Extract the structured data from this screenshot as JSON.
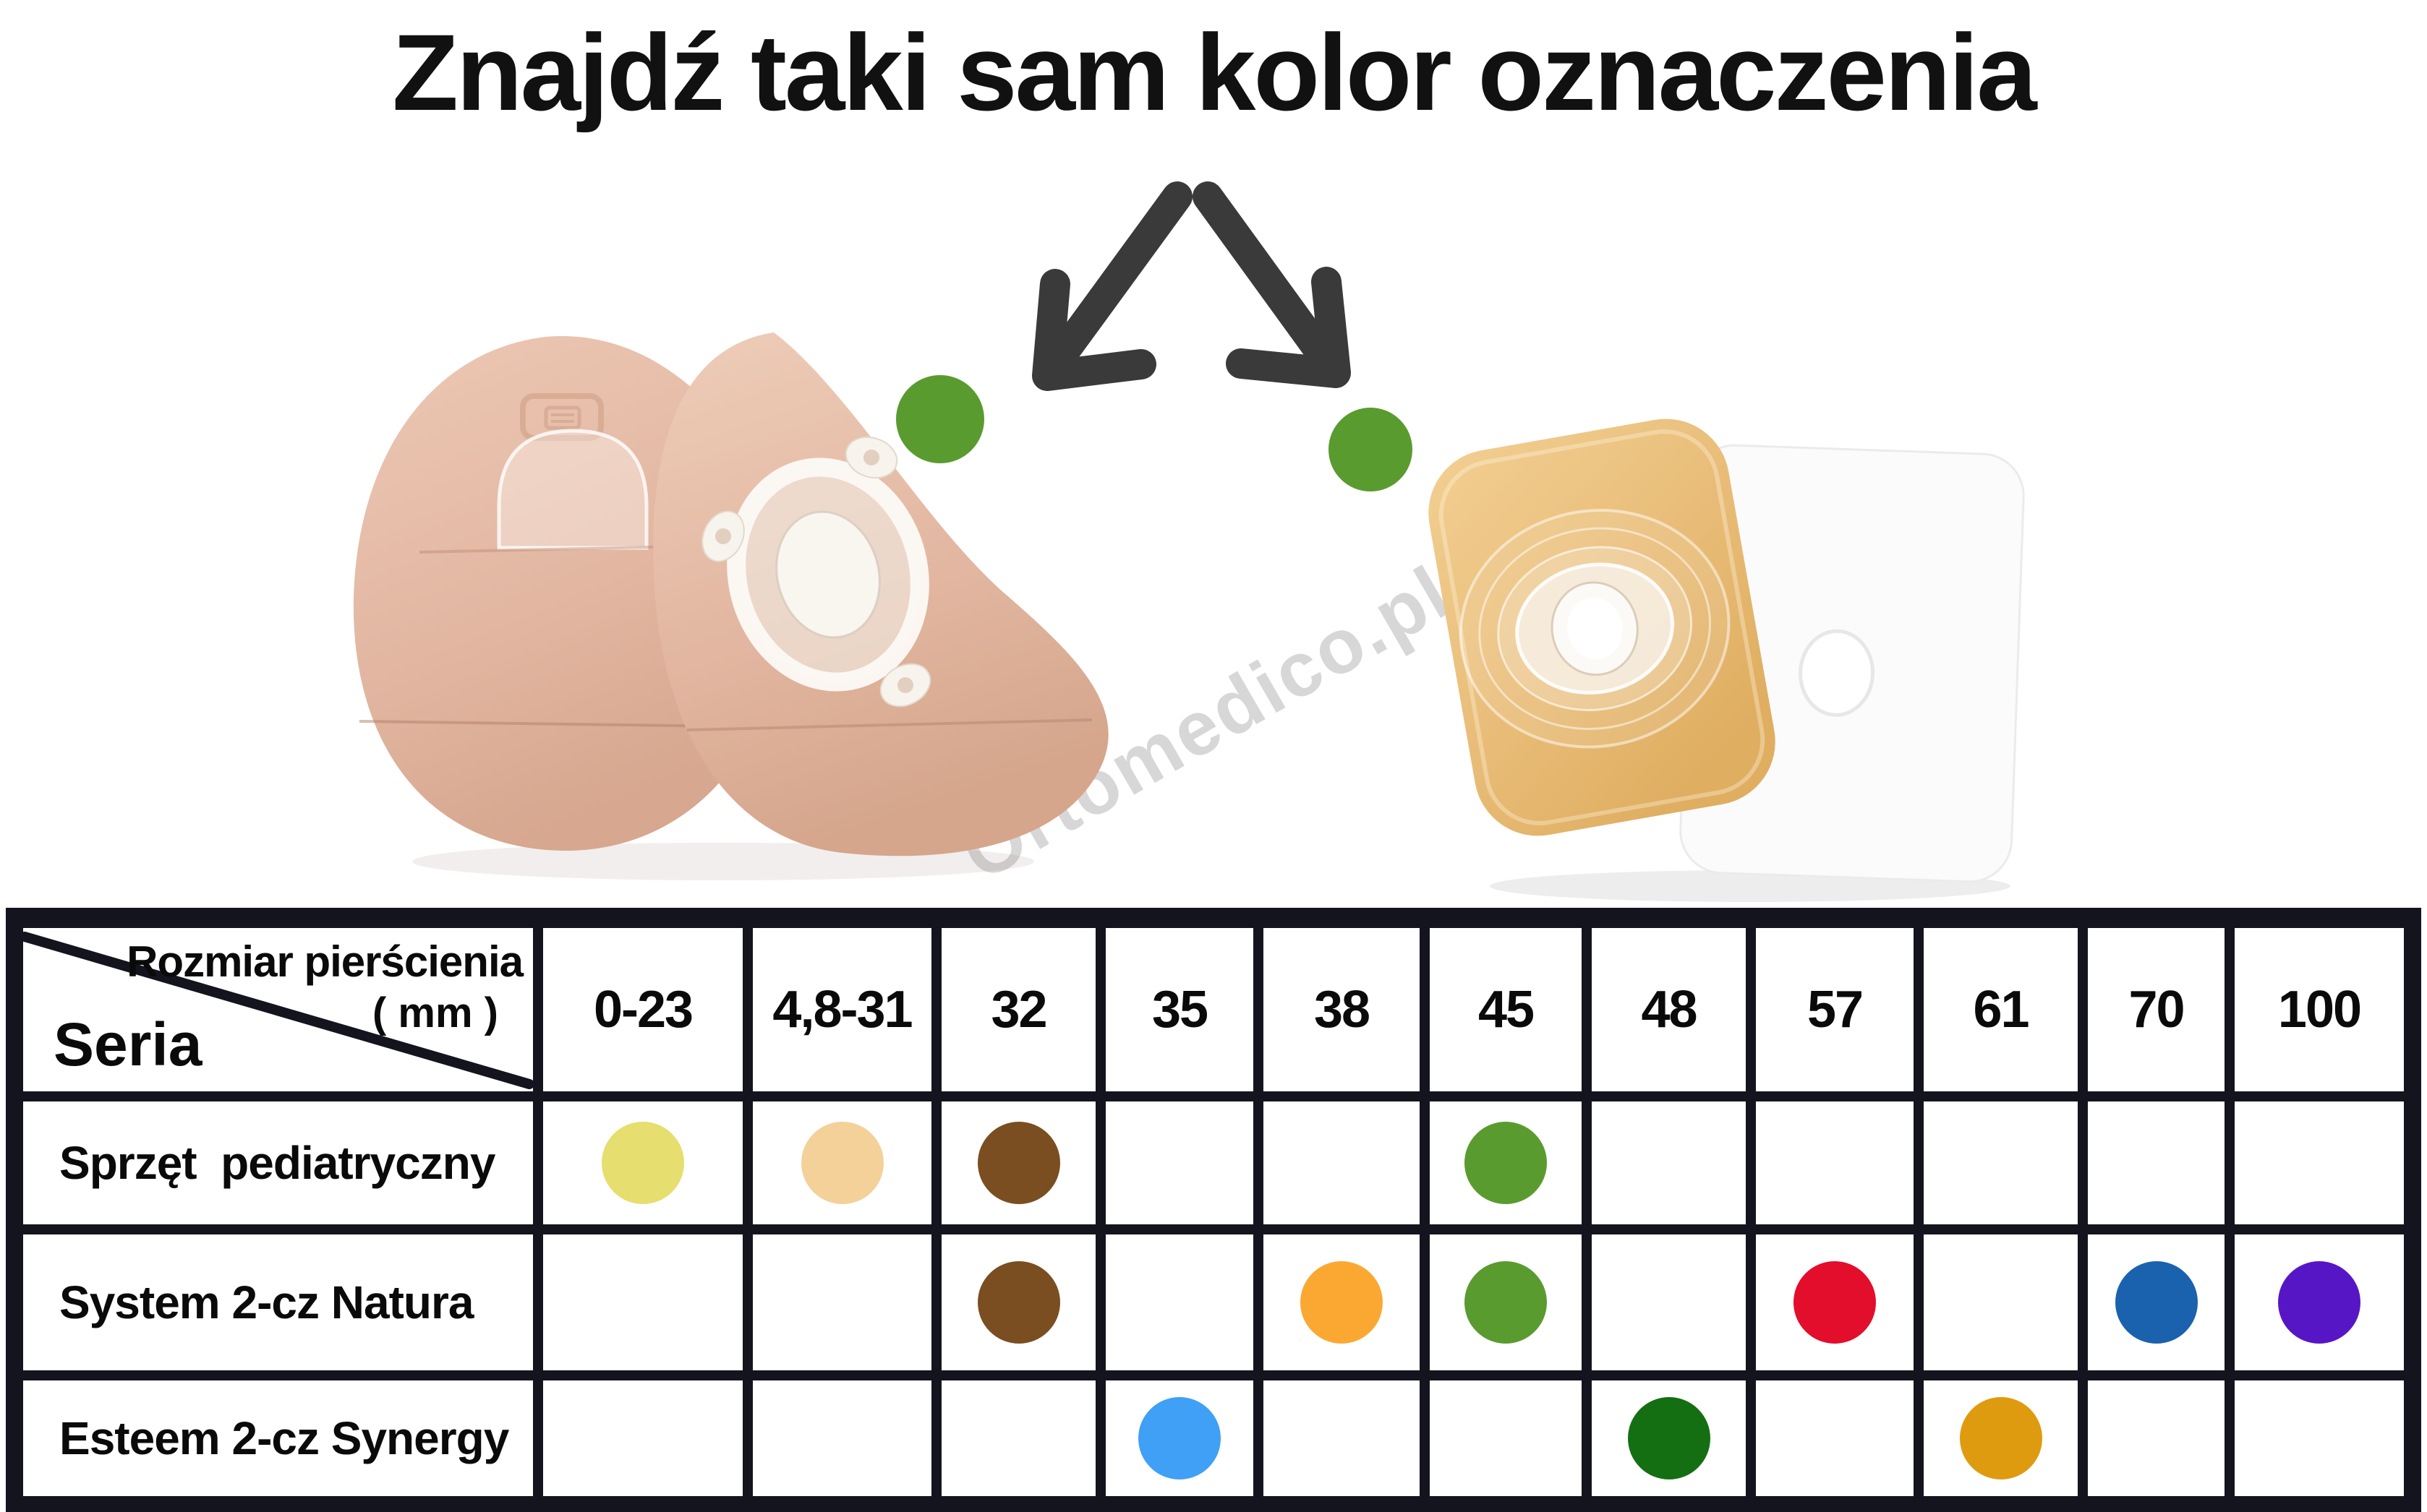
{
  "page": {
    "title": "Znajdź taki sam kolor oznaczenia",
    "watermark": "Ortomedico.pl"
  },
  "annotation": {
    "arrow_color": "#3a3a3a",
    "left_marker_color": "#5a9b2f",
    "right_marker_color": "#5a9b2f"
  },
  "table": {
    "border_color": "#14141f",
    "corner": {
      "size_label": "Rozmiar pierścienia",
      "size_unit": "( mm )",
      "series_label": "Seria"
    },
    "columns": [
      "0-23",
      "4,8-31",
      "32",
      "35",
      "38",
      "45",
      "48",
      "57",
      "61",
      "70",
      "100"
    ],
    "rows": [
      {
        "label": "Sprzęt  pediatryczny",
        "dots": [
          {
            "column": "0-23",
            "color": "#e6de6e"
          },
          {
            "column": "4,8-31",
            "color": "#f3d199"
          },
          {
            "column": "32",
            "color": "#7a4e20"
          },
          {
            "column": "45",
            "color": "#5a9b2f"
          }
        ]
      },
      {
        "label": "System 2-cz Natura",
        "dots": [
          {
            "column": "32",
            "color": "#7a4e20"
          },
          {
            "column": "38",
            "color": "#fba833"
          },
          {
            "column": "45",
            "color": "#5a9b2f"
          },
          {
            "column": "57",
            "color": "#e30d2c"
          },
          {
            "column": "70",
            "color": "#1a61ae"
          },
          {
            "column": "100",
            "color": "#5716c5"
          }
        ]
      },
      {
        "label": "Esteem 2-cz Synergy",
        "dots": [
          {
            "column": "35",
            "color": "#3fa0f5"
          },
          {
            "column": "48",
            "color": "#146f13"
          },
          {
            "column": "61",
            "color": "#df9b0f"
          }
        ]
      }
    ]
  }
}
